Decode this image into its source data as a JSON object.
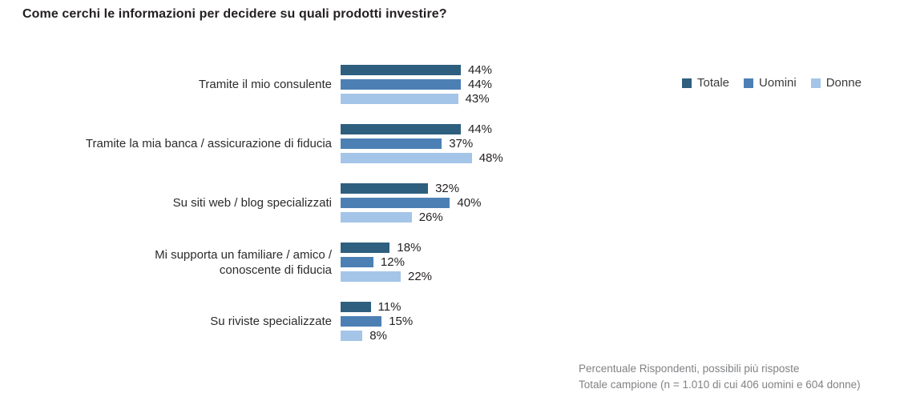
{
  "title": "Come cerchi le informazioni per decidere su quali prodotti investire?",
  "chart_data": {
    "type": "bar",
    "orientation": "horizontal",
    "unit": "%",
    "title": "Come cerchi le informazioni per decidere su quali prodotti investire?",
    "categories": [
      "Tramite il mio consulente",
      "Tramite la mia banca / assicurazione di fiducia",
      "Su siti web / blog specializzati",
      "Mi supporta un familiare / amico /\nconoscente di fiducia",
      "Su riviste specializzate"
    ],
    "series": [
      {
        "name": "Totale",
        "color": "#2e5f7f",
        "values": [
          44,
          44,
          32,
          18,
          11
        ]
      },
      {
        "name": "Uomini",
        "color": "#4c80b4",
        "values": [
          44,
          37,
          40,
          12,
          15
        ]
      },
      {
        "name": "Donne",
        "color": "#a4c5e8",
        "values": [
          43,
          48,
          26,
          22,
          8
        ]
      }
    ],
    "xlim": [
      0,
      50
    ],
    "grid": false,
    "legend_position": "top-right",
    "value_labels": true
  },
  "footer": {
    "line1": "Percentuale Rispondenti, possibili più risposte",
    "line2": "Totale campione (n = 1.010 di cui 406 uomini e 604 donne)"
  }
}
